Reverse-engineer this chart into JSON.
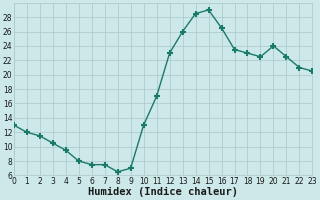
{
  "xlabel": "Humidex (Indice chaleur)",
  "x": [
    0,
    1,
    2,
    3,
    4,
    5,
    6,
    7,
    8,
    9,
    10,
    11,
    12,
    13,
    14,
    15,
    16,
    17,
    18,
    19,
    20,
    21,
    22,
    23
  ],
  "y": [
    13,
    12,
    11.5,
    10.5,
    9.5,
    8,
    7.5,
    7.5,
    6.5,
    7,
    13,
    17,
    23,
    26,
    28.5,
    29,
    26.5,
    23.5,
    23,
    22.5,
    24,
    22.5,
    21,
    20.5
  ],
  "line_color": "#1a7a6a",
  "marker": "+",
  "marker_size": 5,
  "marker_lw": 1.5,
  "bg_color": "#cce8e8",
  "grid_color_major": "#b0cccc",
  "grid_color_minor": "#c4dddd",
  "xlim": [
    0,
    23
  ],
  "ylim": [
    6,
    30
  ],
  "yticks": [
    6,
    8,
    10,
    12,
    14,
    16,
    18,
    20,
    22,
    24,
    26,
    28
  ],
  "xticks": [
    0,
    1,
    2,
    3,
    4,
    5,
    6,
    7,
    8,
    9,
    10,
    11,
    12,
    13,
    14,
    15,
    16,
    17,
    18,
    19,
    20,
    21,
    22,
    23
  ],
  "tick_fontsize": 5.5,
  "xlabel_fontsize": 7.5,
  "label_color": "#1a1a1a",
  "linewidth": 1.0
}
